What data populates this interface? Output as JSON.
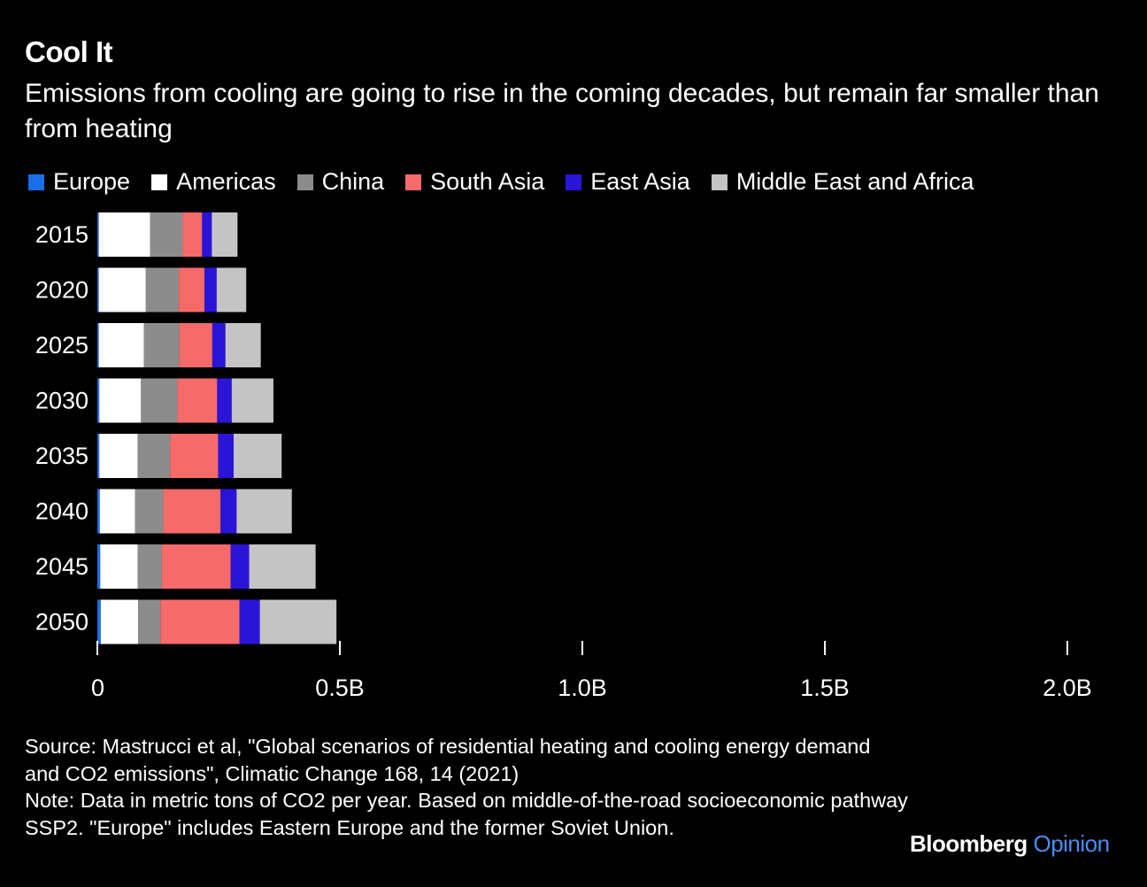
{
  "title": "Cool It",
  "subtitle": "Emissions from cooling are going to rise in the coming decades, but remain far smaller than from heating",
  "source": "Source: Mastrucci et al, \"Global scenarios of residential heating and cooling energy demand and CO2 emissions\", Climatic Change 168, 14 (2021)",
  "note": "Note: Data in metric tons of CO2 per year. Based on middle-of-the-road socioeconomic pathway SSP2. \"Europe\" includes Eastern Europe and the former Soviet Union.",
  "brand": {
    "name": "Bloomberg",
    "suffix": "Opinion"
  },
  "chart_data": {
    "type": "bar",
    "orientation": "horizontal",
    "stacked": true,
    "categories": [
      "2015",
      "2020",
      "2025",
      "2030",
      "2035",
      "2040",
      "2045",
      "2050"
    ],
    "series": [
      {
        "name": "Europe",
        "color": "#1a6fe8",
        "values": [
          0.003,
          0.003,
          0.003,
          0.004,
          0.004,
          0.005,
          0.006,
          0.007
        ]
      },
      {
        "name": "Americas",
        "color": "#ffffff",
        "values": [
          0.106,
          0.097,
          0.093,
          0.086,
          0.079,
          0.073,
          0.077,
          0.077
        ]
      },
      {
        "name": "China",
        "color": "#8c8c8c",
        "values": [
          0.067,
          0.068,
          0.073,
          0.075,
          0.067,
          0.058,
          0.05,
          0.046
        ]
      },
      {
        "name": "South Asia",
        "color": "#f76a6a",
        "values": [
          0.04,
          0.053,
          0.068,
          0.082,
          0.099,
          0.118,
          0.142,
          0.163
        ]
      },
      {
        "name": "East Asia",
        "color": "#2a14d8",
        "values": [
          0.02,
          0.025,
          0.027,
          0.03,
          0.032,
          0.033,
          0.038,
          0.042
        ]
      },
      {
        "name": "Middle East and Africa",
        "color": "#c4c4c4",
        "values": [
          0.053,
          0.061,
          0.073,
          0.086,
          0.099,
          0.114,
          0.137,
          0.158
        ]
      }
    ],
    "unit": "B",
    "xlim": [
      0,
      2.0
    ],
    "xticks": [
      0,
      0.5,
      1.0,
      1.5,
      2.0
    ],
    "xtick_labels": [
      "0",
      "0.5B",
      "1.0B",
      "1.5B",
      "2.0B"
    ],
    "legend_position": "top"
  }
}
